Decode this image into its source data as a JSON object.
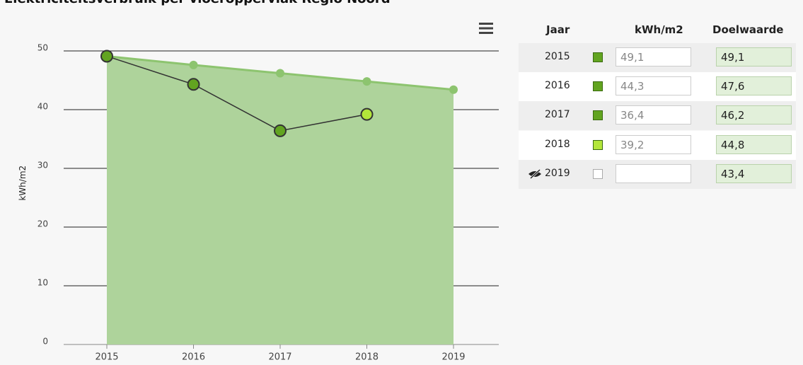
{
  "title": "Elektriciteitsverbruik per vloeroppervlak Regio Noord",
  "chart_data": {
    "type": "line",
    "y_label": "kWh/m2",
    "categories": [
      "2015",
      "2016",
      "2017",
      "2018",
      "2019"
    ],
    "series": [
      {
        "name": "Doelwaarde",
        "color": "#8dc46f",
        "fill": "#aed39b",
        "values": [
          49.1,
          47.6,
          46.2,
          44.8,
          43.4
        ]
      },
      {
        "name": "kWh/m2",
        "color": "#333333",
        "values": [
          49.1,
          44.3,
          36.4,
          39.2,
          null
        ],
        "point_colors": [
          "#62a420",
          "#62a420",
          "#62a420",
          "#b3e63a",
          null
        ]
      }
    ],
    "ylim": [
      0,
      55
    ],
    "yticks": [
      0,
      10,
      20,
      30,
      40,
      50
    ],
    "grid": true
  },
  "table": {
    "headers": [
      "Jaar",
      "kWh/m2",
      "Doelwaarde"
    ],
    "rows": [
      [
        "2015",
        "49,1",
        "49,1"
      ],
      [
        "2016",
        "44,3",
        "47,6"
      ],
      [
        "2017",
        "36,4",
        "46,2"
      ],
      [
        "2018",
        "39,2",
        "44,8"
      ],
      [
        "2019",
        null,
        "43,4"
      ]
    ]
  }
}
